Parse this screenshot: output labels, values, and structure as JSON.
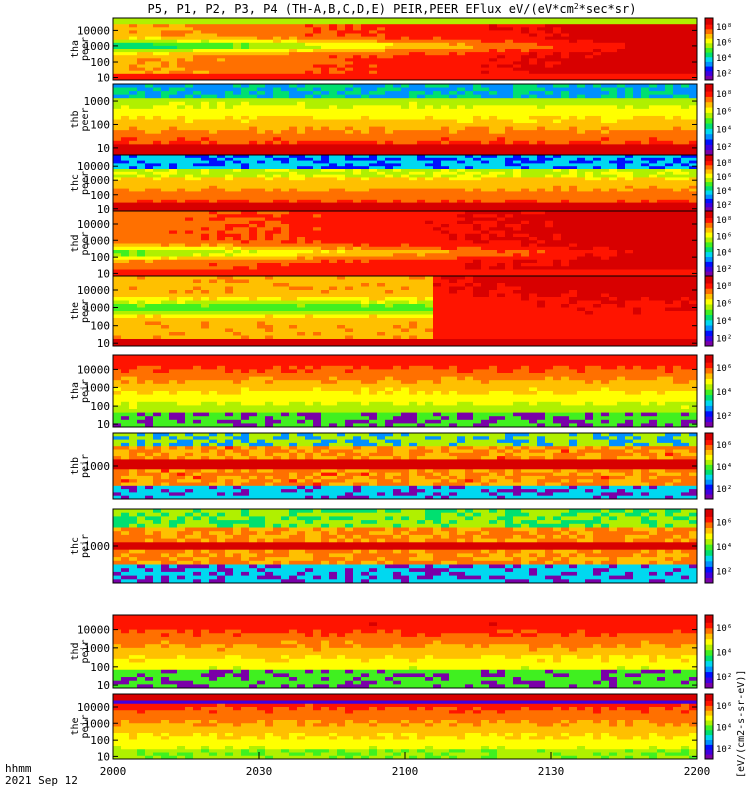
{
  "title": "P5, P1, P2, P3, P4 (TH-A,B,C,D,E) PEIR,PEER EFlux eV/(eV*cm",
  "title_sup": "2",
  "title_tail": "*sec*sr)",
  "time_label": "hhmm",
  "date_label": "2021 Sep 12",
  "colorbar_label": "[eV/(cm2-s-sr-eV)]",
  "chart_data": [
    {
      "type": "heatmap",
      "name": "tha peer",
      "ylabel": [
        "tha",
        "peer"
      ],
      "yticks": [
        "10",
        "100",
        "1000",
        "10000"
      ],
      "cb_ticks": [
        "10²",
        "10⁴",
        "10⁶",
        "10⁸"
      ],
      "scale": "log",
      "profile": "peer_a"
    },
    {
      "type": "heatmap",
      "name": "thb peer",
      "ylabel": [
        "thb",
        "peer"
      ],
      "yticks": [
        "10",
        "100",
        "1000"
      ],
      "cb_ticks": [
        "10²",
        "10⁴",
        "10⁶",
        "10⁸"
      ],
      "scale": "log",
      "profile": "peer_b"
    },
    {
      "type": "heatmap",
      "name": "thc peer",
      "ylabel": [
        "thc",
        "peer"
      ],
      "yticks": [
        "10",
        "100",
        "1000",
        "10000"
      ],
      "cb_ticks": [
        "10²",
        "10⁴",
        "10⁶",
        "10⁸"
      ],
      "scale": "log",
      "profile": "peer_c"
    },
    {
      "type": "heatmap",
      "name": "thd peer",
      "ylabel": [
        "thd",
        "peer"
      ],
      "yticks": [
        "10",
        "100",
        "1000",
        "10000"
      ],
      "cb_ticks": [
        "10²",
        "10⁴",
        "10⁶",
        "10⁸"
      ],
      "scale": "log",
      "profile": "peer_d"
    },
    {
      "type": "heatmap",
      "name": "the peer",
      "ylabel": [
        "the",
        "peer"
      ],
      "yticks": [
        "10",
        "100",
        "1000",
        "10000"
      ],
      "cb_ticks": [
        "10²",
        "10⁴",
        "10⁶",
        "10⁸"
      ],
      "scale": "log",
      "profile": "peer_e"
    },
    {
      "type": "heatmap",
      "name": "tha peir",
      "ylabel": [
        "tha",
        "peir"
      ],
      "yticks": [
        "10",
        "100",
        "1000",
        "10000"
      ],
      "cb_ticks": [
        "10²",
        "10⁴",
        "10⁶"
      ],
      "scale": "log",
      "profile": "peir_a"
    },
    {
      "type": "heatmap",
      "name": "thb peir",
      "ylabel": [
        "thb",
        "peir"
      ],
      "yticks": [
        "1000"
      ],
      "cb_ticks": [
        "10²",
        "10⁴",
        "10⁶"
      ],
      "scale": "log",
      "profile": "peir_b"
    },
    {
      "type": "heatmap",
      "name": "thc peir",
      "ylabel": [
        "thc",
        "peir"
      ],
      "yticks": [
        "1000"
      ],
      "cb_ticks": [
        "10²",
        "10⁴",
        "10⁶"
      ],
      "scale": "log",
      "profile": "peir_c"
    },
    {
      "type": "heatmap",
      "name": "thd peir",
      "ylabel": [
        "thd",
        "peir"
      ],
      "yticks": [
        "10",
        "100",
        "1000",
        "10000"
      ],
      "cb_ticks": [
        "10²",
        "10⁴",
        "10⁶"
      ],
      "scale": "log",
      "profile": "peir_d"
    },
    {
      "type": "heatmap",
      "name": "the peir",
      "ylabel": [
        "the",
        "peir"
      ],
      "yticks": [
        "10",
        "100",
        "1000",
        "10000"
      ],
      "cb_ticks": [
        "10²",
        "10⁴",
        "10⁶"
      ],
      "scale": "log",
      "profile": "peir_e"
    }
  ],
  "x_axis": {
    "ticks": [
      "2000",
      "2030",
      "2100",
      "2130",
      "2200"
    ],
    "range": [
      "2000",
      "2200"
    ],
    "unit": "hhmm"
  }
}
